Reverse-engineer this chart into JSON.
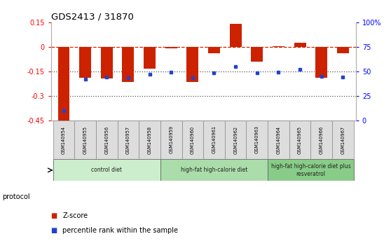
{
  "title": "GDS2413 / 31870",
  "samples": [
    "GSM140954",
    "GSM140955",
    "GSM140956",
    "GSM140957",
    "GSM140958",
    "GSM140959",
    "GSM140960",
    "GSM140961",
    "GSM140962",
    "GSM140963",
    "GSM140964",
    "GSM140965",
    "GSM140966",
    "GSM140967"
  ],
  "zscore": [
    -0.46,
    -0.19,
    -0.195,
    -0.215,
    -0.135,
    -0.01,
    -0.215,
    -0.04,
    0.14,
    -0.09,
    0.005,
    0.025,
    -0.19,
    -0.04
  ],
  "percentile": [
    10,
    42,
    44,
    43,
    47,
    49,
    43,
    48,
    55,
    48,
    49,
    52,
    45,
    44
  ],
  "bar_color": "#cc2200",
  "dot_color": "#2244cc",
  "zero_line_color": "#cc2200",
  "dotted_line_color": "#555555",
  "ylim_left": [
    -0.45,
    0.15
  ],
  "ylim_right": [
    0,
    100
  ],
  "yticks_left": [
    -0.45,
    -0.3,
    -0.15,
    0,
    0.15
  ],
  "ytick_labels_left": [
    "-0.45",
    "-0.3",
    "-0.15",
    "0",
    "0.15"
  ],
  "yticks_right": [
    0,
    25,
    50,
    75,
    100
  ],
  "ytick_labels_right": [
    "0",
    "25",
    "50",
    "75",
    "100%"
  ],
  "groups": [
    {
      "label": "control diet",
      "start": 0,
      "end": 5,
      "color": "#cceecc"
    },
    {
      "label": "high-fat high-calorie diet",
      "start": 5,
      "end": 10,
      "color": "#aaddaa"
    },
    {
      "label": "high-fat high-calorie diet plus\nresveratrol",
      "start": 10,
      "end": 14,
      "color": "#88cc88"
    }
  ],
  "protocol_label": "protocol",
  "legend_zscore": "Z-score",
  "legend_percentile": "percentile rank within the sample",
  "background_color": "#ffffff",
  "bar_width": 0.55
}
